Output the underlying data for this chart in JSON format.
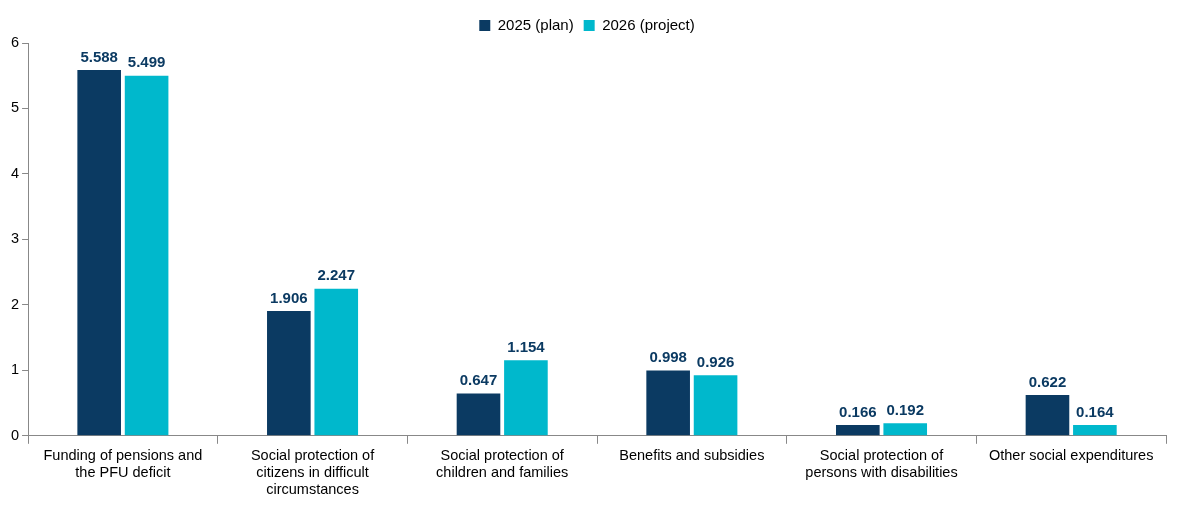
{
  "chart_data": {
    "type": "bar",
    "categories": [
      "Funding of pensions and the PFU deficit",
      "Social protection of citizens in difficult circumstances",
      "Social protection of children and families",
      "Benefits and subsidies",
      "Social protection of persons with disabilities",
      "Other social expenditures"
    ],
    "series": [
      {
        "name": "2025 (plan)",
        "color": "#0b3a62",
        "values": [
          5.588,
          1.906,
          0.647,
          0.998,
          0.166,
          0.622
        ]
      },
      {
        "name": "2026 (project)",
        "color": "#00b8cc",
        "values": [
          5.499,
          2.247,
          1.154,
          0.926,
          0.192,
          0.164
        ]
      }
    ],
    "ylim": [
      0,
      6
    ],
    "yticks": [
      0,
      1,
      2,
      3,
      4,
      5,
      6
    ],
    "grid": false,
    "legend": "top",
    "data_labels": true
  }
}
